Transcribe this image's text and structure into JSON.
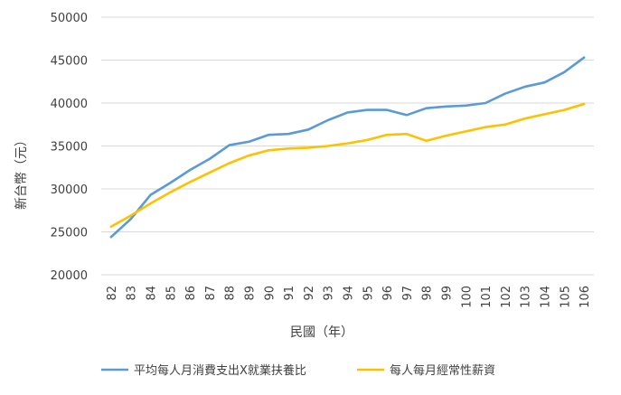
{
  "chart_data": {
    "type": "line",
    "xlabel": "民國（年）",
    "ylabel": "新台幣（元）",
    "ylim": [
      20000,
      50000
    ],
    "yticks": [
      20000,
      25000,
      30000,
      35000,
      40000,
      45000,
      50000
    ],
    "grid": true,
    "legend_position": "bottom",
    "categories": [
      "82",
      "83",
      "84",
      "85",
      "86",
      "87",
      "88",
      "89",
      "90",
      "91",
      "92",
      "93",
      "94",
      "95",
      "96",
      "97",
      "98",
      "99",
      "100",
      "101",
      "102",
      "103",
      "104",
      "105",
      "106"
    ],
    "series": [
      {
        "name": "平均每人月消費支出X就業扶養比",
        "color": "#5B9BD5",
        "values": [
          24400,
          26500,
          29300,
          30700,
          32200,
          33500,
          35100,
          35500,
          36300,
          36400,
          36900,
          38000,
          38900,
          39200,
          39200,
          38600,
          39400,
          39600,
          39700,
          40000,
          41100,
          41900,
          42400,
          43600,
          45300
        ]
      },
      {
        "name": "每人每月經常性薪資",
        "color": "#FFC000",
        "values": [
          25600,
          26900,
          28300,
          29600,
          30800,
          31900,
          33000,
          33900,
          34500,
          34700,
          34800,
          35000,
          35300,
          35700,
          36300,
          36400,
          35600,
          36200,
          36700,
          37200,
          37500,
          38200,
          38700,
          39200,
          39900
        ]
      }
    ]
  }
}
